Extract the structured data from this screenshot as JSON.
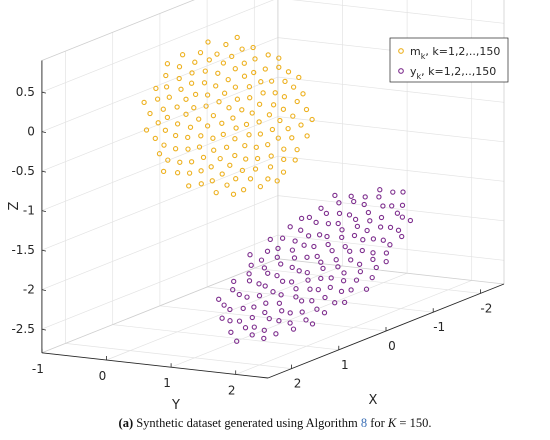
{
  "chart_data": {
    "type": "scatter",
    "title": "",
    "xlabel": "X",
    "ylabel": "Y",
    "zlabel": "Z",
    "xlim": [
      -2.5,
      2.5
    ],
    "ylim": [
      -1,
      2.5
    ],
    "zlim": [
      -2.8,
      0.9
    ],
    "x_ticks": [
      "2",
      "1",
      "0",
      "-1",
      "-2"
    ],
    "y_ticks": [
      "-1",
      "0",
      "1",
      "2"
    ],
    "z_ticks": [
      "0.5",
      "0",
      "-0.5",
      "-1",
      "-1.5",
      "-2",
      "-2.5"
    ],
    "grid": true,
    "legend_position": "top-right",
    "series": [
      {
        "name": "m_k, k=1,2,..,150",
        "legend_main": "m",
        "legend_sub": "k",
        "legend_rest": ", k=1,2,..,150",
        "color": "#EDB120",
        "marker": "circle-open",
        "points": 150,
        "shape": "sphere",
        "center": {
          "x": 0.3,
          "y": 0.8,
          "z": -0.05
        },
        "radius": 1.0
      },
      {
        "name": "y_k, k=1,2,..,150",
        "legend_main": "y",
        "legend_sub": "k",
        "legend_rest": ", k=1,2,..,150",
        "color": "#7E2F8E",
        "marker": "circle-open",
        "points": 150,
        "shape": "tilted ellipsoid",
        "center": {
          "x": -0.5,
          "y": 1.5,
          "z": -1.95
        }
      }
    ]
  },
  "caption": {
    "label": "(a)",
    "text_before": " Synthetic dataset generated using Algorithm ",
    "algorithm_ref": "8",
    "text_after": " for ",
    "var": "K",
    "equals": " = 150."
  }
}
